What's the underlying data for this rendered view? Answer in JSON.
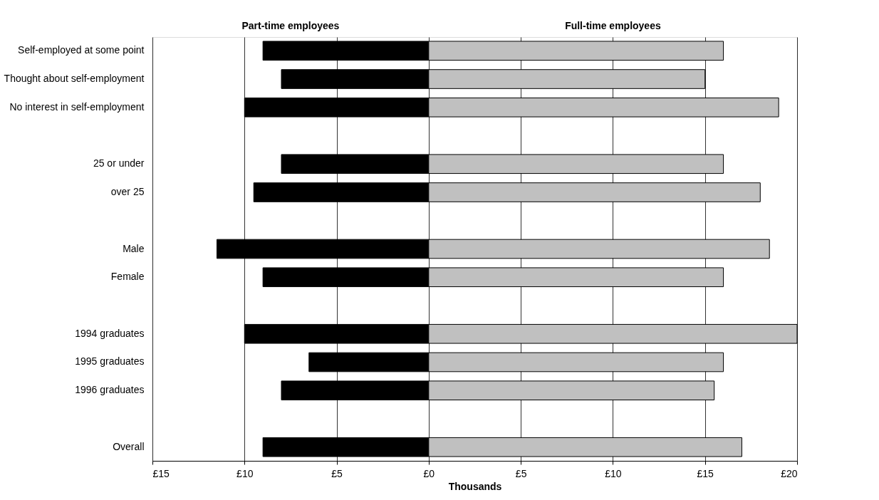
{
  "chart_data": {
    "type": "bar",
    "orientation": "horizontal",
    "xlabel": "Thousands",
    "categories": [
      "Self-employed at some point",
      "Thought about self-employment",
      "No interest in self-employment",
      null,
      "25 or under",
      "over 25",
      null,
      "Male",
      "Female",
      null,
      "1994 graduates",
      "1995 graduates",
      "1996 graduates",
      null,
      "Overall"
    ],
    "series": [
      {
        "name": "Part-time employees",
        "color": "#000000",
        "values": [
          -9,
          -8,
          -10,
          null,
          -8,
          -9.5,
          null,
          -11.5,
          -9,
          null,
          -10,
          -6.5,
          -8,
          null,
          -9
        ]
      },
      {
        "name": "Full-time employees",
        "color": "#c0c0c0",
        "values": [
          16,
          15,
          19,
          null,
          16,
          18,
          null,
          18.5,
          16,
          null,
          20,
          16,
          15.5,
          null,
          17
        ]
      }
    ],
    "xlim": [
      -15,
      20
    ],
    "xticks": [
      {
        "value": -15,
        "label": "£15"
      },
      {
        "value": -10,
        "label": "£10"
      },
      {
        "value": -5,
        "label": "£5"
      },
      {
        "value": 0,
        "label": "£0"
      },
      {
        "value": 5,
        "label": "£5"
      },
      {
        "value": 10,
        "label": "£10"
      },
      {
        "value": 15,
        "label": "£15"
      },
      {
        "value": 20,
        "label": "£20"
      }
    ],
    "grid": "x",
    "legend": false,
    "stacked": true
  }
}
